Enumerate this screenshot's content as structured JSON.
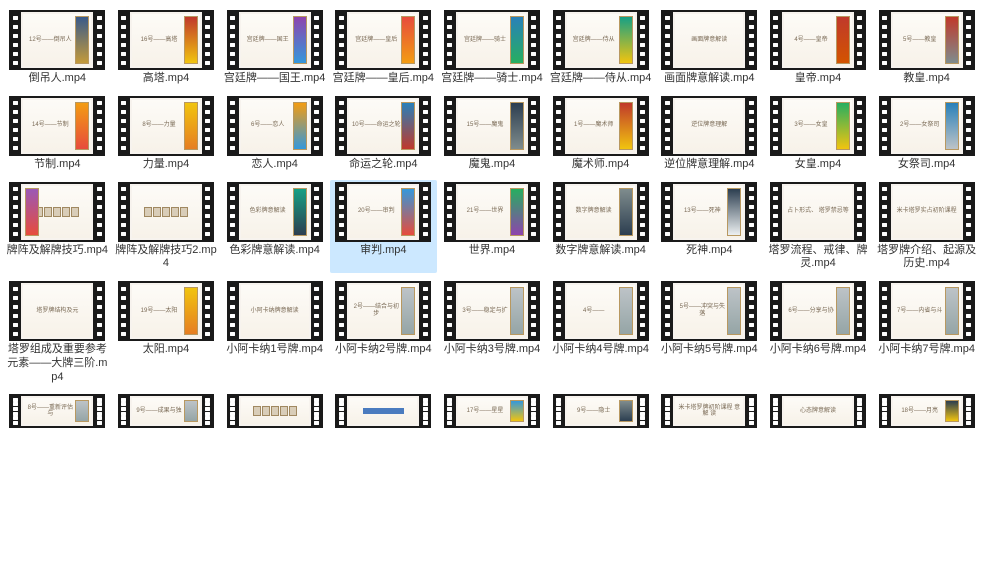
{
  "colors": {
    "background": "#ffffff",
    "film": "#1a1a1a",
    "hole": "#ffffff",
    "selected_bg": "#cce8ff",
    "label": "#333333",
    "preview_bg_top": "#fdfbf7",
    "preview_bg_bottom": "#f7f2e9",
    "preview_text": "#7a6a55"
  },
  "grid": {
    "columns": 9,
    "rows_visible": 5
  },
  "items": [
    {
      "label": "倒吊人.mp4",
      "preview_text": "12号——倒吊人",
      "card_side": "right",
      "card_color": "linear-gradient(180deg,#3a5a8a,#c49a3a)"
    },
    {
      "label": "高塔.mp4",
      "preview_text": "16号——高塔",
      "card_side": "right",
      "card_color": "linear-gradient(180deg,#c0392b,#f1c40f)"
    },
    {
      "label": "宫廷牌——国王.mp4",
      "preview_text": "宫廷牌——国王",
      "card_side": "right",
      "card_color": "linear-gradient(180deg,#8e44ad,#3498db)"
    },
    {
      "label": "宫廷牌——皇后.mp4",
      "preview_text": "宫廷牌——皇后",
      "card_side": "right",
      "card_color": "linear-gradient(180deg,#e74c3c,#f39c12)"
    },
    {
      "label": "宫廷牌——骑士.mp4",
      "preview_text": "宫廷牌——骑士",
      "card_side": "right",
      "card_color": "linear-gradient(180deg,#2980b9,#27ae60)"
    },
    {
      "label": "宫廷牌——侍从.mp4",
      "preview_text": "宫廷牌——侍从",
      "card_side": "right",
      "card_color": "linear-gradient(180deg,#16a085,#f1c40f)"
    },
    {
      "label": "画面牌意解读.mp4",
      "preview_text": "画面牌意解读",
      "card_side": "none",
      "card_color": ""
    },
    {
      "label": "皇帝.mp4",
      "preview_text": "4号——皇帝",
      "card_side": "right",
      "card_color": "linear-gradient(180deg,#c0392b,#d35400)"
    },
    {
      "label": "教皇.mp4",
      "preview_text": "5号——教皇",
      "card_side": "right",
      "card_color": "linear-gradient(180deg,#c0392b,#7f8c8d)"
    },
    {
      "label": "节制.mp4",
      "preview_text": "14号——节制",
      "card_side": "right",
      "card_color": "linear-gradient(180deg,#f39c12,#e74c3c)"
    },
    {
      "label": "力量.mp4",
      "preview_text": "8号——力量",
      "card_side": "right",
      "card_color": "linear-gradient(180deg,#f1c40f,#e67e22)"
    },
    {
      "label": "恋人.mp4",
      "preview_text": "6号——恋人",
      "card_side": "right",
      "card_color": "linear-gradient(180deg,#f39c12,#3498db)"
    },
    {
      "label": "命运之轮.mp4",
      "preview_text": "10号——命运之轮",
      "card_side": "right",
      "card_color": "linear-gradient(180deg,#2980b9,#c0392b)"
    },
    {
      "label": "魔鬼.mp4",
      "preview_text": "15号——魔鬼",
      "card_side": "right",
      "card_color": "linear-gradient(180deg,#2c3e50,#7f8c8d)"
    },
    {
      "label": "魔术师.mp4",
      "preview_text": "1号——魔术师",
      "card_side": "right",
      "card_color": "linear-gradient(180deg,#c0392b,#f1c40f)"
    },
    {
      "label": "逆位牌意理解.mp4",
      "preview_text": "逆位牌意理解",
      "card_side": "none",
      "card_color": ""
    },
    {
      "label": "女皇.mp4",
      "preview_text": "3号——女皇",
      "card_side": "right",
      "card_color": "linear-gradient(180deg,#27ae60,#f1c40f)"
    },
    {
      "label": "女祭司.mp4",
      "preview_text": "2号——女祭司",
      "card_side": "right",
      "card_color": "linear-gradient(180deg,#2980b9,#bdc3c7)"
    },
    {
      "label": "牌阵及解牌技巧.mp4",
      "preview_text": "牌阵及综合解读技",
      "card_side": "left",
      "card_color": "linear-gradient(180deg,#9b59b6,#e74c3c)",
      "style": "tiles"
    },
    {
      "label": "牌阵及解牌技巧2.mp4",
      "preview_text": "",
      "card_side": "none",
      "card_color": "",
      "style": "tiles"
    },
    {
      "label": "色彩牌意解读.mp4",
      "preview_text": "色彩牌意解读",
      "card_side": "right",
      "card_color": "linear-gradient(180deg,#16a085,#2c3e50)"
    },
    {
      "label": "审判.mp4",
      "preview_text": "20号——审判",
      "card_side": "right",
      "card_color": "linear-gradient(180deg,#3498db,#e74c3c)",
      "selected": true
    },
    {
      "label": "世界.mp4",
      "preview_text": "21号——世界",
      "card_side": "right",
      "card_color": "linear-gradient(180deg,#27ae60,#8e44ad)"
    },
    {
      "label": "数字牌意解读.mp4",
      "preview_text": "数字牌意解读",
      "card_side": "right",
      "card_color": "linear-gradient(180deg,#7f8c8d,#2c3e50)"
    },
    {
      "label": "死神.mp4",
      "preview_text": "13号——死神",
      "card_side": "right",
      "card_color": "linear-gradient(180deg,#2c3e50,#ecf0f1)"
    },
    {
      "label": "塔罗流程、戒律、牌灵.mp4",
      "preview_text": "占卜形式、\n塔罗禁忌等",
      "card_side": "none",
      "card_color": ""
    },
    {
      "label": "塔罗牌介绍、起源及历史.mp4",
      "preview_text": "米卡塔罗实占初阶课程",
      "card_side": "none",
      "card_color": ""
    },
    {
      "label": "塔罗组成及重要参考元素——大牌三阶.mp4",
      "preview_text": "塔罗牌结构及元",
      "card_side": "none",
      "card_color": ""
    },
    {
      "label": "太阳.mp4",
      "preview_text": "19号——太阳",
      "card_side": "right",
      "card_color": "linear-gradient(180deg,#f1c40f,#e67e22)"
    },
    {
      "label": "小阿卡纳1号牌.mp4",
      "preview_text": "小阿卡纳牌意解读",
      "card_side": "none",
      "card_color": ""
    },
    {
      "label": "小阿卡纳2号牌.mp4",
      "preview_text": "2号——结合与初步",
      "card_side": "right",
      "card_color": "linear-gradient(180deg,#bdc3c7,#95a5a6)"
    },
    {
      "label": "小阿卡纳3号牌.mp4",
      "preview_text": "3号——稳定与扩",
      "card_side": "right",
      "card_color": "linear-gradient(180deg,#bdc3c7,#95a5a6)"
    },
    {
      "label": "小阿卡纳4号牌.mp4",
      "preview_text": "4号——",
      "card_side": "right",
      "card_color": "linear-gradient(180deg,#bdc3c7,#95a5a6)"
    },
    {
      "label": "小阿卡纳5号牌.mp4",
      "preview_text": "5号——冲突与失落",
      "card_side": "right",
      "card_color": "linear-gradient(180deg,#bdc3c7,#95a5a6)"
    },
    {
      "label": "小阿卡纳6号牌.mp4",
      "preview_text": "6号——分享与协",
      "card_side": "right",
      "card_color": "linear-gradient(180deg,#bdc3c7,#95a5a6)"
    },
    {
      "label": "小阿卡纳7号牌.mp4",
      "preview_text": "7号——内省与斗",
      "card_side": "right",
      "card_color": "linear-gradient(180deg,#bdc3c7,#95a5a6)"
    },
    {
      "label": "",
      "preview_text": "8号——重新评估与",
      "card_side": "right",
      "card_color": "linear-gradient(180deg,#bdc3c7,#95a5a6)",
      "partial": true
    },
    {
      "label": "",
      "preview_text": "9号——成果与独",
      "card_side": "right",
      "card_color": "linear-gradient(180deg,#bdc3c7,#95a5a6)",
      "partial": true
    },
    {
      "label": "",
      "preview_text": "",
      "card_side": "none",
      "card_color": "",
      "style": "tiles",
      "partial": true
    },
    {
      "label": "",
      "preview_text": "",
      "card_side": "none",
      "card_color": "",
      "style": "bluebar",
      "partial": true
    },
    {
      "label": "",
      "preview_text": "17号——星星",
      "card_side": "right",
      "card_color": "linear-gradient(180deg,#3498db,#f1c40f)",
      "partial": true
    },
    {
      "label": "",
      "preview_text": "9号——隐士",
      "card_side": "right",
      "card_color": "linear-gradient(180deg,#7f8c8d,#2c3e50)",
      "partial": true
    },
    {
      "label": "",
      "preview_text": "米卡塔罗牌初阶课程\n意   解   读",
      "card_side": "none",
      "card_color": "",
      "partial": true
    },
    {
      "label": "",
      "preview_text": "心态牌意解读",
      "card_side": "none",
      "card_color": "",
      "partial": true
    },
    {
      "label": "",
      "preview_text": "18号——月亮",
      "card_side": "right",
      "card_color": "linear-gradient(180deg,#2c3e50,#f1c40f)",
      "partial": true
    }
  ]
}
